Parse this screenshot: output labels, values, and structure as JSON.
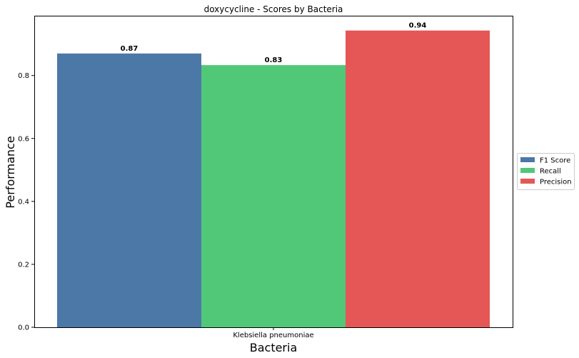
{
  "chart_data": {
    "type": "bar",
    "title": "doxycycline - Scores by Bacteria",
    "xlabel": "Bacteria",
    "ylabel": "Performance",
    "categories": [
      "Klebsiella pneumoniae"
    ],
    "series": [
      {
        "name": "F1 Score",
        "values": [
          0.87
        ],
        "color": "#4c78a8",
        "label": "0.87"
      },
      {
        "name": "Recall",
        "values": [
          0.833
        ],
        "color": "#50c878",
        "label": "0.83"
      },
      {
        "name": "Precision",
        "values": [
          0.943
        ],
        "color": "#e45756",
        "label": "0.94"
      }
    ],
    "ylim": [
      0,
      0.99
    ],
    "yticks": [
      0.0,
      0.2,
      0.4,
      0.6,
      0.8
    ],
    "ytick_labels": [
      "0.0",
      "0.2",
      "0.4",
      "0.6",
      "0.8"
    ],
    "grid": false,
    "legend_position": "right"
  }
}
